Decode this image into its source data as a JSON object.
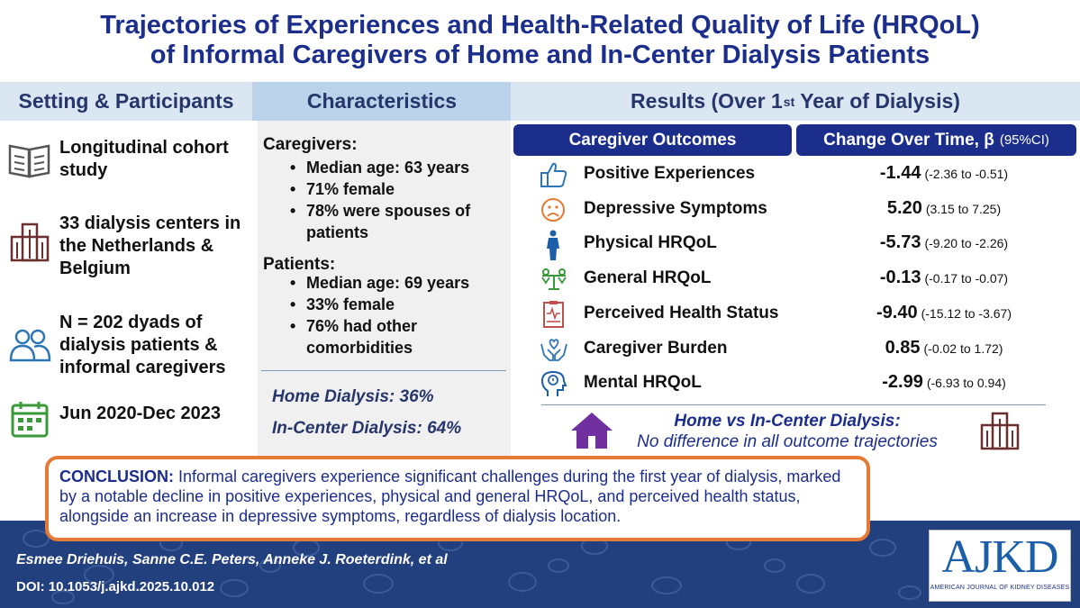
{
  "title": {
    "line1": "Trajectories of Experiences and Health-Related Quality of Life (HRQoL)",
    "line2": "of Informal Caregivers of Home and In-Center Dialysis Patients"
  },
  "headers": {
    "setting": "Setting & Participants",
    "characteristics": "Characteristics",
    "results_prefix": "Results (Over 1",
    "results_sup": "st",
    "results_suffix": " Year of Dialysis)"
  },
  "setting": {
    "items": [
      {
        "icon": "book-icon",
        "text": "Longitudinal cohort study"
      },
      {
        "icon": "building-icon",
        "text": "33 dialysis centers in the Netherlands & Belgium"
      },
      {
        "icon": "people-icon",
        "text": "N = 202 dyads of dialysis patients & informal caregivers"
      },
      {
        "icon": "calendar-icon",
        "text": "Jun 2020-Dec 2023"
      }
    ]
  },
  "characteristics": {
    "caregivers_heading": "Caregivers:",
    "caregivers": [
      "Median age: 63 years",
      "71% female",
      "78% were spouses of patients"
    ],
    "patients_heading": "Patients:",
    "patients": [
      "Median age: 69 years",
      "33% female",
      "76% had other comorbidities"
    ],
    "home": "Home Dialysis: 36%",
    "incenter": "In-Center Dialysis: 64%"
  },
  "results": {
    "outcomes_heading": "Caregiver Outcomes",
    "change_heading": "Change Over Time, β",
    "change_ci": "(95%CI)",
    "rows": [
      {
        "icon": "thumbs-up-icon",
        "label": "Positive Experiences",
        "beta": "-1.44",
        "ci": "(-2.36 to -0.51)"
      },
      {
        "icon": "sad-face-icon",
        "label": "Depressive Symptoms",
        "beta": "5.20",
        "ci": "(3.15 to 7.25)"
      },
      {
        "icon": "person-icon",
        "label": "Physical HRQoL",
        "beta": "-5.73",
        "ci": "(-9.20 to -2.26)"
      },
      {
        "icon": "scale-icon",
        "label": "General HRQoL",
        "beta": "-0.13",
        "ci": "(-0.17 to -0.07)"
      },
      {
        "icon": "clipboard-icon",
        "label": "Perceived Health Status",
        "beta": "-9.40",
        "ci": "(-15.12 to -3.67)"
      },
      {
        "icon": "caring-hands-icon",
        "label": "Caregiver Burden",
        "beta": "0.85",
        "ci": "(-0.02 to 1.72)"
      },
      {
        "icon": "mind-icon",
        "label": "Mental HRQoL",
        "beta": "-2.99",
        "ci": "(-6.93 to 0.94)"
      }
    ],
    "comparison_heading": "Home vs In-Center Dialysis:",
    "comparison_text": "No difference in all outcome trajectories"
  },
  "conclusion": {
    "label": "CONCLUSION:",
    "text": " Informal caregivers experience significant challenges during the first year of dialysis, marked by a notable decline in positive experiences, physical and general HRQoL, and perceived health status, alongside an increase in depressive symptoms, regardless of dialysis location."
  },
  "footer": {
    "authors": "Esmee Driehuis, Sanne C.E. Peters, Anneke J. Roeterdink, et al",
    "doi": "DOI: 10.1053/j.ajkd.2025.10.012",
    "logo_big": "AJKD",
    "logo_small": "AMERICAN JOURNAL OF KIDNEY DISEASES"
  },
  "colors": {
    "navy": "#1c2e8c",
    "accent_orange": "#e57a34",
    "icon_red": "#c0504d",
    "icon_blue": "#2e75b6",
    "icon_green": "#3a9a3a",
    "icon_purple": "#7030a0",
    "icon_dark": "#6b2f2f"
  }
}
